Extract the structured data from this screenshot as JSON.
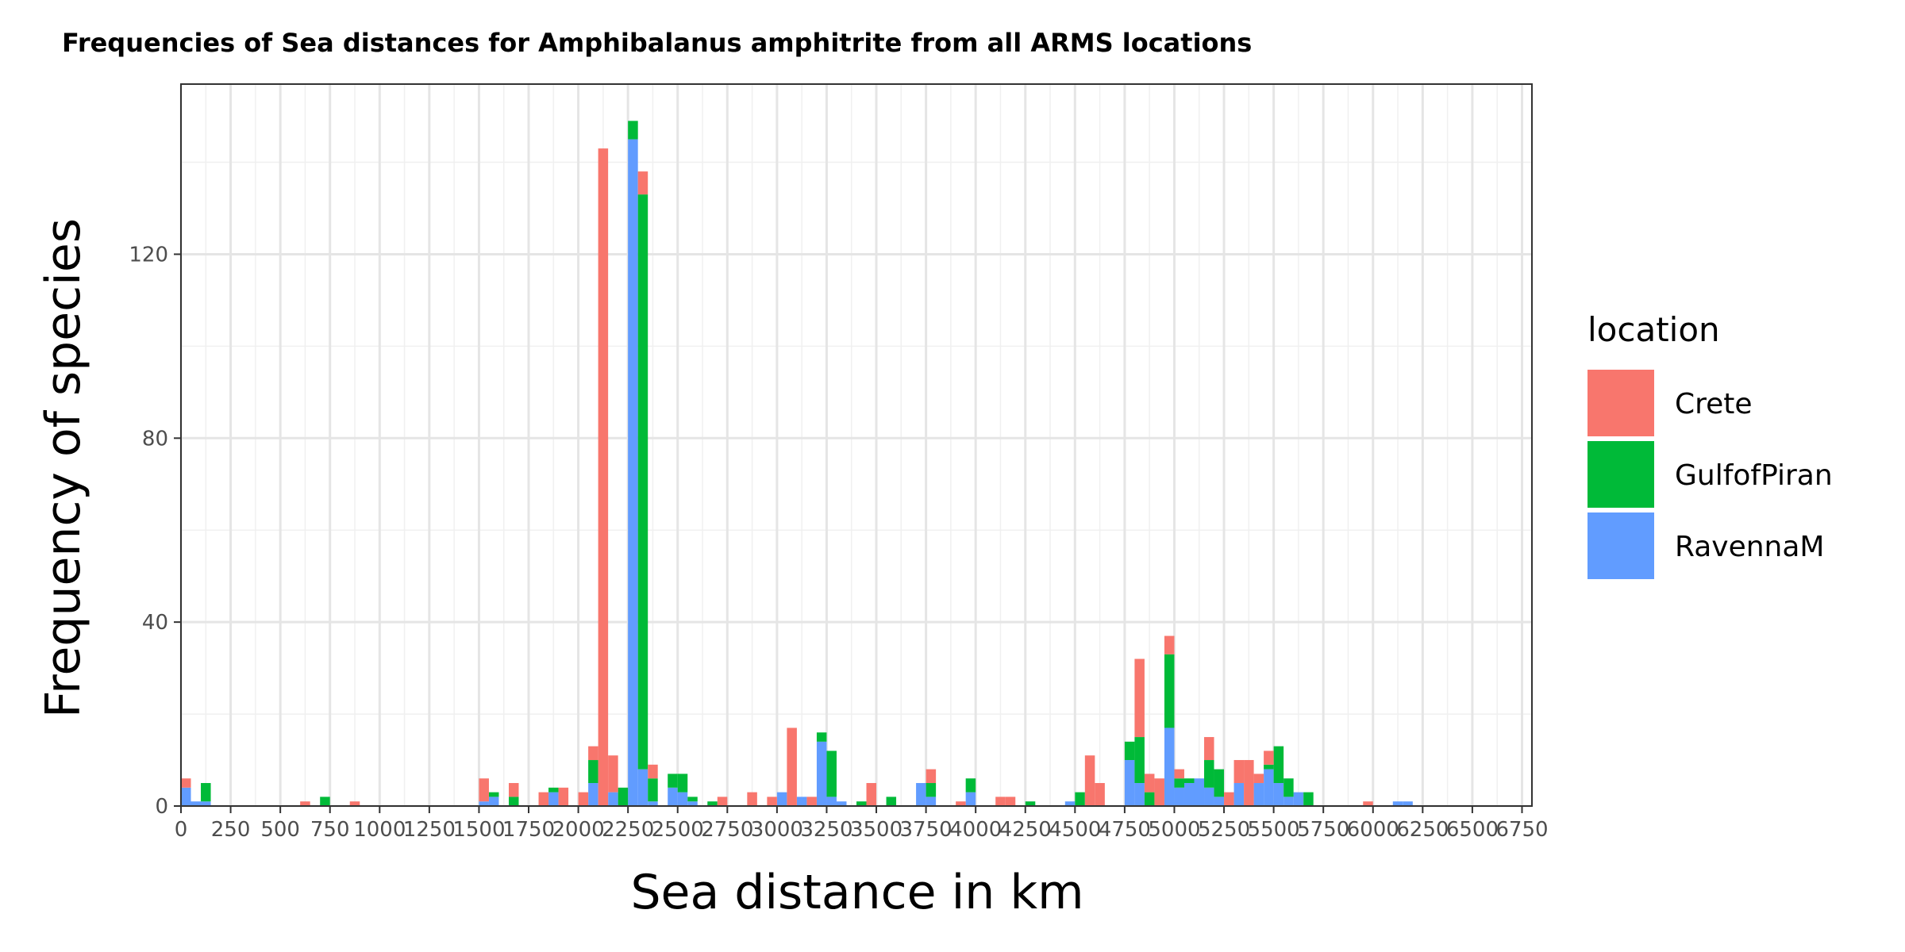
{
  "chart_data": {
    "type": "bar",
    "stacked": true,
    "title": "Frequencies of Sea distances for Amphibalanus amphitrite from all ARMS locations",
    "xlabel": "Sea distance in km",
    "ylabel": "Frequency of species",
    "xlim": [
      0,
      6800
    ],
    "ylim": [
      0,
      157
    ],
    "bin_width": 50,
    "x_ticks": [
      0,
      250,
      500,
      750,
      1000,
      1250,
      1500,
      1750,
      2000,
      2250,
      2500,
      2750,
      3000,
      3250,
      3500,
      3750,
      4000,
      4250,
      4500,
      4750,
      5000,
      5250,
      5500,
      5750,
      6000,
      6250,
      6500,
      6750
    ],
    "x_tick_labels": [
      "0",
      "250",
      "500",
      "750",
      "1000",
      "1250",
      "1500",
      "1750",
      "2000",
      "2250",
      "2500",
      "2750",
      "3000",
      "3250",
      "3500",
      "3750",
      "4000",
      "4250",
      "4500",
      "4750",
      "5000",
      "5250",
      "5500",
      "5750",
      "6000",
      "6250",
      "6500",
      "6750"
    ],
    "y_ticks": [
      0,
      40,
      80,
      120
    ],
    "y_tick_labels": [
      "0",
      "40",
      "80",
      "120"
    ],
    "grid": true,
    "legend": {
      "title": "location",
      "position": "right"
    },
    "series": [
      {
        "name": "RavennaM",
        "color": "#619CFF",
        "points": [
          [
            0,
            4
          ],
          [
            50,
            1
          ],
          [
            100,
            1
          ],
          [
            1500,
            1
          ],
          [
            1550,
            2
          ],
          [
            1850,
            3
          ],
          [
            2050,
            5
          ],
          [
            2150,
            3
          ],
          [
            2250,
            145
          ],
          [
            2300,
            8
          ],
          [
            2350,
            1
          ],
          [
            2450,
            4
          ],
          [
            2500,
            3
          ],
          [
            2550,
            1
          ],
          [
            3000,
            3
          ],
          [
            3100,
            2
          ],
          [
            3200,
            14
          ],
          [
            3250,
            2
          ],
          [
            3300,
            1
          ],
          [
            3700,
            5
          ],
          [
            3750,
            2
          ],
          [
            3950,
            3
          ],
          [
            4450,
            1
          ],
          [
            4750,
            10
          ],
          [
            4800,
            5
          ],
          [
            4950,
            17
          ],
          [
            5000,
            4
          ],
          [
            5050,
            5
          ],
          [
            5100,
            6
          ],
          [
            5150,
            4
          ],
          [
            5200,
            2
          ],
          [
            5300,
            5
          ],
          [
            5400,
            5
          ],
          [
            5450,
            8
          ],
          [
            5500,
            5
          ],
          [
            5550,
            2
          ],
          [
            5600,
            3
          ],
          [
            6100,
            1
          ],
          [
            6150,
            1
          ]
        ]
      },
      {
        "name": "GulfofPiran",
        "color": "#00BA38",
        "points": [
          [
            100,
            4
          ],
          [
            700,
            2
          ],
          [
            1550,
            1
          ],
          [
            1650,
            2
          ],
          [
            1850,
            1
          ],
          [
            2050,
            5
          ],
          [
            2200,
            4
          ],
          [
            2250,
            4
          ],
          [
            2300,
            125
          ],
          [
            2350,
            5
          ],
          [
            2450,
            3
          ],
          [
            2500,
            4
          ],
          [
            2550,
            1
          ],
          [
            2650,
            1
          ],
          [
            3200,
            2
          ],
          [
            3250,
            10
          ],
          [
            3400,
            1
          ],
          [
            3550,
            2
          ],
          [
            3750,
            3
          ],
          [
            3950,
            3
          ],
          [
            4250,
            1
          ],
          [
            4500,
            3
          ],
          [
            4750,
            4
          ],
          [
            4800,
            10
          ],
          [
            4850,
            3
          ],
          [
            4950,
            16
          ],
          [
            5000,
            2
          ],
          [
            5050,
            1
          ],
          [
            5150,
            6
          ],
          [
            5200,
            6
          ],
          [
            5450,
            1
          ],
          [
            5500,
            8
          ],
          [
            5550,
            4
          ],
          [
            5650,
            3
          ]
        ]
      },
      {
        "name": "Crete",
        "color": "#F8766D",
        "points": [
          [
            0,
            2
          ],
          [
            600,
            1
          ],
          [
            850,
            1
          ],
          [
            1500,
            5
          ],
          [
            1650,
            3
          ],
          [
            1800,
            3
          ],
          [
            1900,
            4
          ],
          [
            2000,
            3
          ],
          [
            2050,
            3
          ],
          [
            2100,
            143
          ],
          [
            2150,
            8
          ],
          [
            2300,
            5
          ],
          [
            2350,
            3
          ],
          [
            2700,
            2
          ],
          [
            2850,
            3
          ],
          [
            2950,
            2
          ],
          [
            3050,
            17
          ],
          [
            3150,
            2
          ],
          [
            3450,
            5
          ],
          [
            3750,
            3
          ],
          [
            3900,
            1
          ],
          [
            4100,
            2
          ],
          [
            4150,
            2
          ],
          [
            4550,
            11
          ],
          [
            4600,
            5
          ],
          [
            4800,
            17
          ],
          [
            4850,
            4
          ],
          [
            4900,
            6
          ],
          [
            4950,
            4
          ],
          [
            5000,
            2
          ],
          [
            5150,
            5
          ],
          [
            5250,
            3
          ],
          [
            5300,
            5
          ],
          [
            5350,
            10
          ],
          [
            5400,
            2
          ],
          [
            5450,
            3
          ],
          [
            5950,
            1
          ]
        ]
      }
    ]
  }
}
